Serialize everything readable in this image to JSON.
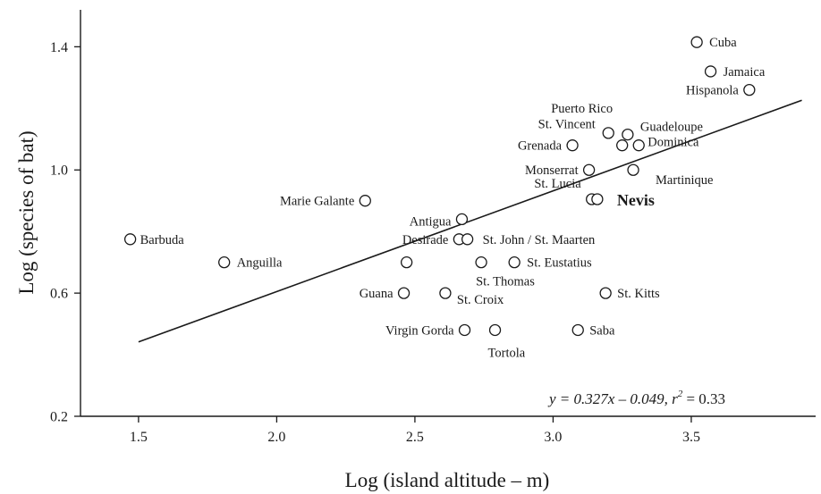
{
  "chart_data": {
    "type": "scatter",
    "xlabel": "Log (island altitude – m)",
    "ylabel": "Log (species of bat)",
    "xlim": [
      1.29,
      3.95
    ],
    "ylim": [
      0.2,
      1.52
    ],
    "x_ticks": [
      "1.5",
      "2.0",
      "2.5",
      "3.0",
      "3.5"
    ],
    "y_ticks": [
      "0.2",
      "0.6",
      "1.0",
      "1.4"
    ],
    "grid": false,
    "legend": "none",
    "points": [
      {
        "label": "Cuba",
        "x": 3.52,
        "y": 1.415
      },
      {
        "label": "Jamaica",
        "x": 3.57,
        "y": 1.32
      },
      {
        "label": "Hispanola",
        "x": 3.71,
        "y": 1.26
      },
      {
        "label": "Puerto Rico",
        "x": 3.2,
        "y": 1.12
      },
      {
        "label": "Guadeloupe",
        "x": 3.27,
        "y": 1.115
      },
      {
        "label": "Dominica",
        "x": 3.31,
        "y": 1.08
      },
      {
        "label": "St. Vincent",
        "x": 3.25,
        "y": 1.08
      },
      {
        "label": "Grenada",
        "x": 3.07,
        "y": 1.08
      },
      {
        "label": "Monserrat",
        "x": 3.13,
        "y": 1.0
      },
      {
        "label": "Martinique",
        "x": 3.29,
        "y": 1.0
      },
      {
        "label": "St. Lucia",
        "x": 3.14,
        "y": 0.905
      },
      {
        "label": "Nevis",
        "x": 3.16,
        "y": 0.905,
        "bold": true
      },
      {
        "label": "Marie Galante",
        "x": 2.32,
        "y": 0.9
      },
      {
        "label": "Antigua",
        "x": 2.67,
        "y": 0.84
      },
      {
        "label": "Barbuda",
        "x": 1.47,
        "y": 0.775
      },
      {
        "label": "Desirade",
        "x": 2.66,
        "y": 0.775
      },
      {
        "label": "St. John / St. Maarten",
        "x": 2.69,
        "y": 0.775
      },
      {
        "label": "Anguilla",
        "x": 1.81,
        "y": 0.7
      },
      {
        "label": "",
        "x": 2.47,
        "y": 0.7
      },
      {
        "label": "St. Thomas",
        "x": 2.74,
        "y": 0.7
      },
      {
        "label": "St. Eustatius",
        "x": 2.86,
        "y": 0.7
      },
      {
        "label": "Guana",
        "x": 2.46,
        "y": 0.6
      },
      {
        "label": "St. Croix",
        "x": 2.61,
        "y": 0.6
      },
      {
        "label": "St. Kitts",
        "x": 3.19,
        "y": 0.6
      },
      {
        "label": "Virgin Gorda",
        "x": 2.68,
        "y": 0.48
      },
      {
        "label": "Tortola",
        "x": 2.79,
        "y": 0.48
      },
      {
        "label": "Saba",
        "x": 3.09,
        "y": 0.48
      }
    ],
    "regression": {
      "slope": 0.327,
      "intercept": -0.049,
      "x_range": [
        1.5,
        3.9
      ]
    },
    "annotation": {
      "equation": "y = 0.327x – 0.049, r",
      "r_sup": "2",
      "r_value": " = 0.33"
    }
  }
}
